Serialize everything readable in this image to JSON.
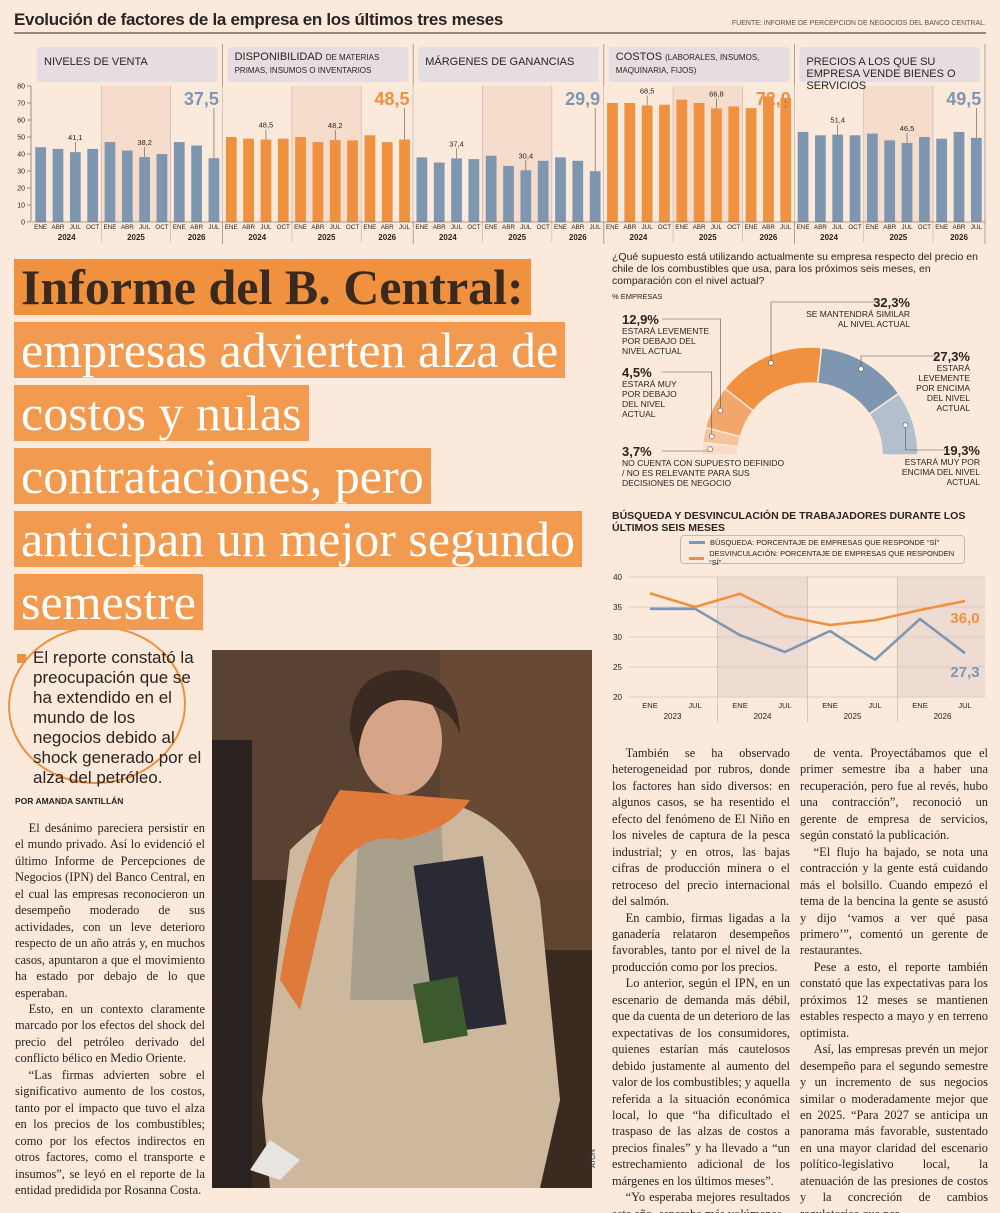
{
  "header": {
    "title": "Evolución de factores de la empresa en los últimos tres meses",
    "source": "FUENTE: INFORME DE PERCEPCION DE NEGOCIOS DEL BANCO CENTRAL."
  },
  "chart_data": [
    {
      "type": "bar",
      "title": "NIVELES DE VENTA",
      "categories": [
        "ENE",
        "ABR",
        "JUL",
        "OCT",
        "ENE",
        "ABR",
        "JUL",
        "OCT",
        "ENE",
        "ABR",
        "JUL"
      ],
      "year_labels": [
        "2024",
        "2025",
        "2026"
      ],
      "values": [
        44,
        43,
        41.1,
        43,
        47,
        42,
        38.2,
        40,
        47,
        45,
        37.5
      ],
      "value_labels": [
        null,
        null,
        "41,1",
        null,
        null,
        null,
        "38,2",
        null,
        null,
        null,
        "37,5"
      ],
      "color": "#7f96b0",
      "ylim": [
        0,
        80
      ],
      "yticks": [
        0,
        10,
        20,
        30,
        40,
        50,
        60,
        70,
        80
      ]
    },
    {
      "type": "bar",
      "title": "DISPONIBILIDAD",
      "subtitle": "DE MATERIAS PRIMAS, INSUMOS O INVENTARIOS",
      "categories": [
        "ENE",
        "ABR",
        "JUL",
        "OCT",
        "ENE",
        "ABR",
        "JUL",
        "OCT",
        "ENE",
        "ABR",
        "JUL"
      ],
      "year_labels": [
        "2024",
        "2025",
        "2026"
      ],
      "values": [
        50,
        49,
        48.5,
        49,
        50,
        47,
        48.2,
        48,
        51,
        47,
        48.5
      ],
      "value_labels": [
        null,
        null,
        "48,5",
        null,
        null,
        null,
        "48,2",
        null,
        null,
        null,
        "48,5"
      ],
      "color": "#f0913f",
      "ylim": [
        0,
        80
      ]
    },
    {
      "type": "bar",
      "title": "MÁRGENES DE GANANCIAS",
      "categories": [
        "ENE",
        "ABR",
        "JUL",
        "OCT",
        "ENE",
        "ABR",
        "JUL",
        "OCT",
        "ENE",
        "ABR",
        "JUL"
      ],
      "year_labels": [
        "2024",
        "2025",
        "2026"
      ],
      "values": [
        38,
        35,
        37.4,
        37,
        39,
        33,
        30.4,
        36,
        38,
        36,
        29.9
      ],
      "value_labels": [
        null,
        null,
        "37,4",
        null,
        null,
        null,
        "30,4",
        null,
        null,
        null,
        "29,9"
      ],
      "color": "#7f96b0",
      "ylim": [
        0,
        80
      ]
    },
    {
      "type": "bar",
      "title": "COSTOS",
      "subtitle": "(LABORALES, INSUMOS, MAQUINARIA, FIJOS)",
      "categories": [
        "ENE",
        "ABR",
        "JUL",
        "OCT",
        "ENE",
        "ABR",
        "JUL",
        "OCT",
        "ENE",
        "ABR",
        "JUL"
      ],
      "year_labels": [
        "2024",
        "2025",
        "2026"
      ],
      "values": [
        70,
        70,
        68.5,
        69,
        72,
        70,
        66.8,
        68,
        67,
        74,
        72.9
      ],
      "value_labels": [
        null,
        null,
        "68,5",
        null,
        null,
        null,
        "66,8",
        null,
        null,
        null,
        "72,9"
      ],
      "color": "#f0913f",
      "ylim": [
        0,
        80
      ]
    },
    {
      "type": "bar",
      "title": "PRECIOS A LOS QUE SU EMPRESA VENDE BIENES O SERVICIOS",
      "categories": [
        "ENE",
        "ABR",
        "JUL",
        "OCT",
        "ENE",
        "ABR",
        "JUL",
        "OCT",
        "ENE",
        "ABR",
        "JUL"
      ],
      "year_labels": [
        "2024",
        "2025",
        "2026"
      ],
      "values": [
        53,
        51,
        51.4,
        51,
        52,
        48,
        46.5,
        50,
        49,
        53,
        49.5
      ],
      "value_labels": [
        null,
        null,
        "51,4",
        null,
        null,
        null,
        "46,5",
        null,
        null,
        null,
        "49,5"
      ],
      "color": "#7f96b0",
      "ylim": [
        0,
        80
      ]
    },
    {
      "type": "donut",
      "title": "¿Qué supuesto está utilizando actualmente su empresa respecto del precio en chile de los combustibles que usa, para los próximos seis meses, en comparación con el nivel actual?",
      "subtitle": "% EMPRESAS",
      "categories": [
        "NO CUENTA CON SUPUESTO DEFINIDO / NO ES RELEVANTE PARA SUS DECISIONES DE NEGOCIO",
        "ESTARÁ MUY POR DEBAJO DEL NIVEL ACTUAL",
        "ESTARÁ LEVEMENTE POR DEBAJO DEL NIVEL ACTUAL",
        "SE MANTENDRÁ SIMILAR AL NIVEL ACTUAL",
        "ESTARÁ LEVEMENTE POR ENCIMA DEL NIVEL ACTUAL",
        "ESTARÁ MUY POR ENCIMA DEL NIVEL ACTUAL"
      ],
      "values": [
        3.7,
        4.5,
        12.9,
        32.3,
        27.3,
        19.3
      ],
      "value_labels": [
        "3,7%",
        "4,5%",
        "12,9%",
        "32,3%",
        "27,3%",
        "19,3%"
      ],
      "colors": [
        "#f8dcc6",
        "#f6c49a",
        "#f3a66a",
        "#f0913f",
        "#7f96b0",
        "#b3bfcd"
      ]
    },
    {
      "type": "line",
      "title": "BÚSQUEDA Y DESVINCULACIÓN DE TRABAJADORES DURANTE LOS ÚLTIMOS SEIS MESES",
      "categories": [
        "ENE",
        "JUL",
        "ENE",
        "JUL",
        "ENE",
        "JUL",
        "ENE",
        "JUL"
      ],
      "year_labels": [
        "2023",
        "2024",
        "2025",
        "2026"
      ],
      "series": [
        {
          "name": "BÚSQUEDA: PORCENTAJE DE EMPRESAS QUE RESPONDE “SÍ”",
          "color": "#7f96b0",
          "values": [
            34.7,
            34.7,
            30.3,
            27.5,
            31,
            26.2,
            33,
            27.3
          ],
          "value_labels": [
            null,
            null,
            null,
            null,
            null,
            null,
            null,
            "27,3"
          ]
        },
        {
          "name": "DESVINCULACIÓN: PORCENTAJE DE EMPRESAS QUE RESPONDEN “SÍ”",
          "color": "#f0913f",
          "values": [
            37.3,
            35,
            37.2,
            33.5,
            32,
            32.8,
            34.5,
            36
          ],
          "value_labels": [
            null,
            null,
            null,
            null,
            null,
            null,
            null,
            "36,0"
          ]
        }
      ],
      "ylim": [
        20,
        40
      ],
      "yticks": [
        20,
        25,
        30,
        35,
        40
      ]
    }
  ],
  "article": {
    "kicker": "Informe del B. Central:",
    "headline": "empresas advierten alza de costos y nulas contrataciones, pero anticipan un mejor segundo semestre",
    "pull_quote": "El reporte constató la preocupación que se ha extendido en el mundo de los negocios debido al shock generado por el alza del petróleo.",
    "byline": "POR AMANDA SANTILLÁN",
    "photo_credit": "ATON",
    "columns": [
      [
        "El desánimo pareciera persistir en el mundo privado. Así lo evidenció el último Informe de Percepciones de Negocios (IPN) del Banco Central, en el cual las empresas reconocieron un desempeño moderado de sus actividades, con un leve deterioro respecto de un año atrás y, en muchos casos, apuntaron a que el movimiento ha estado por debajo de lo que esperaban.",
        "Esto, en un contexto claramente marcado por los efectos del shock del precio del petróleo derivado del conflicto bélico en Medio Oriente.",
        "“Las firmas advierten sobre el significativo aumento de los costos, tanto por el impacto que tuvo el alza en los precios de los combustibles; como por los efectos indirectos en otros factores, como el transporte e insumos”, se leyó en el reporte de la entidad predidida por Rosanna Costa."
      ],
      [
        "También se ha observado heterogeneidad por rubros, donde los factores han sido diversos: en algunos casos, se ha resentido el efecto del fenómeno de El Niño en los niveles de captura de la pesca industrial; y en otros, las bajas cifras de producción minera o el retroceso del precio internacional del salmón.",
        "En cambio, firmas ligadas a la ganadería relataron desempeños favorables, tanto por el nivel de la producción como por los precios.",
        "Lo anterior, según el IPN, en un escenario de demanda más débil, que da cuenta de un deterioro de las expectativas de los consumidores, quienes estarían más cautelosos debido justamente al aumento del valor de los combustibles; y aquella referida a la situación económica local, lo que “ha dificultado el traspaso de las alzas de costos a precios finales” y ha llevado a “un estrechamiento adicional de los márgenes en los últimos meses”.",
        "“Yo esperaba mejores resultados este año, esperaba más volúmenes"
      ],
      [
        "de venta. Proyectábamos que el primer semestre iba a haber una recuperación, pero fue al revés, hubo una contracción”, reconoció un gerente de empresa de servicios, según constató la publicación.",
        "“El flujo ha bajado, se nota una contracción y la gente está cuidando más el bolsillo. Cuando empezó el tema de la bencina la gente se asustó y dijo ‘vamos a ver qué pasa primero’”, comentó un gerente de restaurantes.",
        "Pese a esto, el reporte también constató que las expectativas para los próximos 12 meses se mantienen estables respecto a mayo y en terreno optimista.",
        "Así, las empresas prevén un mejor desempeño para el segundo semestre y un incremento de sus negocios similar o moderadamente mejor que en 2025. “Para 2027 se anticipa un panorama más favorable, sustentado en una mayor claridad del escenario político-legislativo local, la atenuación de las presiones de costos y la concreción de cambios regulatorios que per-"
      ]
    ]
  }
}
